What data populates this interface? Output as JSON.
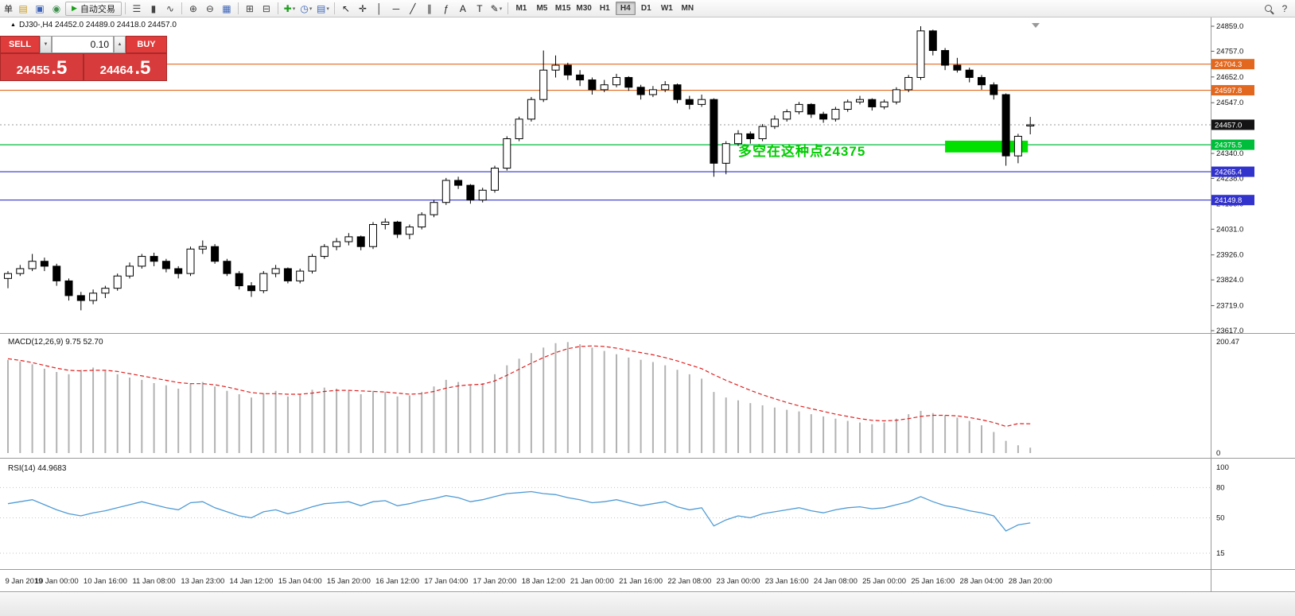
{
  "toolbar": {
    "dropdown_glyph": "▾",
    "help_glyph": "?",
    "timeframes": [
      "M1",
      "M5",
      "M15",
      "M30",
      "H1",
      "H4",
      "D1",
      "W1",
      "MN"
    ],
    "active_timeframe": "H4",
    "groups": [
      {
        "name": "trade-group",
        "items": [
          {
            "kind": "text",
            "name": "new-order-button",
            "glyph": "单"
          },
          {
            "kind": "icon",
            "name": "charts-icon",
            "glyph": "▤",
            "color": "#c79818"
          },
          {
            "kind": "icon",
            "name": "terminal-icon",
            "glyph": "▣",
            "color": "#3a62b8"
          },
          {
            "kind": "icon",
            "name": "navigator-icon",
            "glyph": "◉",
            "color": "#3f8f4f"
          },
          {
            "kind": "button",
            "name": "auto-trading-button",
            "glyph": "▶",
            "color": "#19a019",
            "label": "自动交易"
          }
        ]
      },
      {
        "name": "chart-type-group",
        "items": [
          {
            "kind": "icon",
            "name": "bar-chart-icon",
            "glyph": "☰",
            "color": "#444"
          },
          {
            "kind": "icon",
            "name": "candlestick-chart-icon",
            "glyph": "▮",
            "color": "#444"
          },
          {
            "kind": "icon",
            "name": "line-chart-icon",
            "glyph": "∿",
            "color": "#444"
          }
        ]
      },
      {
        "name": "zoom-group",
        "items": [
          {
            "kind": "icon",
            "name": "zoom-in-icon",
            "glyph": "⊕",
            "color": "#444"
          },
          {
            "kind": "icon",
            "name": "zoom-out-icon",
            "glyph": "⊖",
            "color": "#444"
          },
          {
            "kind": "icon",
            "name": "grid-icon",
            "glyph": "▦",
            "color": "#3a62b8"
          }
        ]
      },
      {
        "name": "window-group",
        "items": [
          {
            "kind": "icon",
            "name": "tile-windows-icon",
            "glyph": "⊞",
            "color": "#444"
          },
          {
            "kind": "icon",
            "name": "cascade-windows-icon",
            "glyph": "⊟",
            "color": "#444"
          }
        ]
      },
      {
        "name": "insert-group",
        "items": [
          {
            "kind": "icon",
            "name": "indicators-add-icon",
            "glyph": "✚",
            "color": "#1f9f1f",
            "dropdown": true
          },
          {
            "kind": "icon",
            "name": "periods-icon",
            "glyph": "◷",
            "color": "#3a62b8",
            "dropdown": true
          },
          {
            "kind": "icon",
            "name": "templates-icon",
            "glyph": "▤",
            "color": "#3a62b8",
            "dropdown": true
          }
        ]
      },
      {
        "name": "objects-group",
        "items": [
          {
            "kind": "icon",
            "name": "cursor-icon",
            "glyph": "↖",
            "color": "#222"
          },
          {
            "kind": "icon",
            "name": "crosshair-icon",
            "glyph": "✛",
            "color": "#222"
          },
          {
            "kind": "icon",
            "name": "vertical-line-icon",
            "glyph": "│",
            "color": "#222"
          },
          {
            "kind": "icon",
            "name": "horizontal-line-icon",
            "glyph": "─",
            "color": "#222"
          },
          {
            "kind": "icon",
            "name": "trendline-icon",
            "glyph": "╱",
            "color": "#222"
          },
          {
            "kind": "icon",
            "name": "equidistant-channel-icon",
            "glyph": "∥",
            "color": "#222"
          },
          {
            "kind": "icon",
            "name": "fibonacci-icon",
            "glyph": "ƒ",
            "color": "#222"
          },
          {
            "kind": "icon",
            "name": "text-icon",
            "glyph": "A",
            "color": "#222"
          },
          {
            "kind": "icon",
            "name": "text-label-icon",
            "glyph": "T",
            "color": "#222"
          },
          {
            "kind": "icon",
            "name": "arrows-icon",
            "glyph": "✎",
            "color": "#222",
            "dropdown": true
          }
        ]
      }
    ]
  },
  "chart": {
    "marker_glyph": "▲",
    "title_text": "DJ30-,H4  24452.0 24489.0 24418.0 24457.0"
  },
  "trade_panel": {
    "sell_label": "SELL",
    "buy_label": "BUY",
    "volume": "0.10",
    "sell_dropdown_glyph": "▼",
    "volume_up_glyph": "▲",
    "sell_price_main": "24455",
    "sell_price_frac": ".5",
    "buy_price_main": "24464",
    "buy_price_frac": ".5"
  },
  "annotations": {
    "note_text": "多空在这种点24375",
    "levels": [
      {
        "label": "24704.3",
        "price": 24704.3,
        "color": "#E2681F"
      },
      {
        "label": "24597.8",
        "price": 24597.8,
        "color": "#E2681F"
      },
      {
        "label": "24375.5",
        "price": 24375.5,
        "color": "#00BE3C"
      },
      {
        "label": "24265.4",
        "price": 24265.4,
        "color": "#3232CC"
      },
      {
        "label": "24149.8",
        "price": 24149.8,
        "color": "#3232CC"
      }
    ],
    "current_price": {
      "label": "24457.0",
      "price": 24457.0,
      "color": "#141414"
    },
    "green_zone": {
      "x_start_index": 77,
      "x_end_index": 84,
      "price_top": 24392,
      "price_bottom": 24344,
      "color": "#00E000"
    }
  },
  "chart_data": {
    "type": "candlestick",
    "symbol": "DJ30-",
    "timeframe": "H4",
    "price_axis_labels": [
      "24859.0",
      "24757.0",
      "24652.0",
      "24547.0",
      "24340.0",
      "24238.0",
      "24135.0",
      "24031.0",
      "23926.0",
      "23824.0",
      "23719.0",
      "23617.0"
    ],
    "price_range": {
      "top_price": 24859.0,
      "bottom_price": 23617.0
    },
    "candles": [
      [
        23830,
        23860,
        23790,
        23850
      ],
      [
        23850,
        23885,
        23840,
        23870
      ],
      [
        23870,
        23930,
        23860,
        23900
      ],
      [
        23900,
        23915,
        23860,
        23880
      ],
      [
        23880,
        23890,
        23800,
        23820
      ],
      [
        23820,
        23830,
        23740,
        23760
      ],
      [
        23760,
        23775,
        23700,
        23740
      ],
      [
        23740,
        23785,
        23725,
        23770
      ],
      [
        23770,
        23800,
        23750,
        23790
      ],
      [
        23790,
        23850,
        23780,
        23840
      ],
      [
        23840,
        23895,
        23830,
        23880
      ],
      [
        23880,
        23930,
        23870,
        23920
      ],
      [
        23920,
        23935,
        23880,
        23900
      ],
      [
        23900,
        23910,
        23855,
        23870
      ],
      [
        23870,
        23880,
        23830,
        23850
      ],
      [
        23850,
        23960,
        23840,
        23950
      ],
      [
        23950,
        23985,
        23930,
        23960
      ],
      [
        23960,
        23970,
        23890,
        23900
      ],
      [
        23900,
        23910,
        23840,
        23850
      ],
      [
        23850,
        23860,
        23785,
        23800
      ],
      [
        23800,
        23815,
        23755,
        23780
      ],
      [
        23780,
        23860,
        23770,
        23850
      ],
      [
        23850,
        23885,
        23835,
        23870
      ],
      [
        23870,
        23875,
        23810,
        23820
      ],
      [
        23820,
        23870,
        23810,
        23860
      ],
      [
        23860,
        23930,
        23850,
        23920
      ],
      [
        23920,
        23970,
        23910,
        23960
      ],
      [
        23960,
        23995,
        23945,
        23980
      ],
      [
        23980,
        24015,
        23965,
        24000
      ],
      [
        24000,
        24005,
        23945,
        23960
      ],
      [
        23960,
        24060,
        23950,
        24050
      ],
      [
        24050,
        24075,
        24030,
        24060
      ],
      [
        24060,
        24065,
        23995,
        24010
      ],
      [
        24010,
        24050,
        23990,
        24040
      ],
      [
        24040,
        24100,
        24030,
        24090
      ],
      [
        24090,
        24150,
        24080,
        24140
      ],
      [
        24140,
        24240,
        24130,
        24230
      ],
      [
        24230,
        24245,
        24195,
        24210
      ],
      [
        24210,
        24215,
        24135,
        24150
      ],
      [
        24150,
        24200,
        24140,
        24190
      ],
      [
        24190,
        24290,
        24180,
        24280
      ],
      [
        24280,
        24410,
        24270,
        24400
      ],
      [
        24400,
        24490,
        24390,
        24480
      ],
      [
        24480,
        24570,
        24470,
        24560
      ],
      [
        24560,
        24760,
        24550,
        24680
      ],
      [
        24680,
        24740,
        24650,
        24700
      ],
      [
        24700,
        24710,
        24640,
        24660
      ],
      [
        24660,
        24680,
        24615,
        24640
      ],
      [
        24640,
        24650,
        24580,
        24600
      ],
      [
        24600,
        24640,
        24590,
        24620
      ],
      [
        24620,
        24665,
        24610,
        24650
      ],
      [
        24650,
        24655,
        24595,
        24610
      ],
      [
        24610,
        24620,
        24560,
        24580
      ],
      [
        24580,
        24615,
        24570,
        24600
      ],
      [
        24600,
        24635,
        24590,
        24620
      ],
      [
        24620,
        24625,
        24545,
        24560
      ],
      [
        24560,
        24575,
        24520,
        24540
      ],
      [
        24540,
        24580,
        24530,
        24560
      ],
      [
        24560,
        24565,
        24245,
        24300
      ],
      [
        24300,
        24390,
        24255,
        24380
      ],
      [
        24380,
        24435,
        24370,
        24420
      ],
      [
        24420,
        24430,
        24380,
        24400
      ],
      [
        24400,
        24460,
        24390,
        24450
      ],
      [
        24450,
        24495,
        24440,
        24480
      ],
      [
        24480,
        24520,
        24470,
        24510
      ],
      [
        24510,
        24550,
        24500,
        24540
      ],
      [
        24540,
        24545,
        24485,
        24500
      ],
      [
        24500,
        24510,
        24465,
        24480
      ],
      [
        24480,
        24530,
        24470,
        24520
      ],
      [
        24520,
        24560,
        24510,
        24550
      ],
      [
        24550,
        24575,
        24540,
        24560
      ],
      [
        24560,
        24565,
        24515,
        24530
      ],
      [
        24530,
        24560,
        24520,
        24550
      ],
      [
        24550,
        24610,
        24540,
        24600
      ],
      [
        24600,
        24660,
        24590,
        24650
      ],
      [
        24650,
        24859,
        24640,
        24840
      ],
      [
        24840,
        24845,
        24740,
        24760
      ],
      [
        24760,
        24770,
        24680,
        24700
      ],
      [
        24700,
        24730,
        24670,
        24680
      ],
      [
        24680,
        24690,
        24630,
        24650
      ],
      [
        24650,
        24660,
        24600,
        24620
      ],
      [
        24620,
        24630,
        24560,
        24580
      ],
      [
        24580,
        24585,
        24290,
        24330
      ],
      [
        24330,
        24420,
        24300,
        24410
      ],
      [
        24452,
        24489,
        24418,
        24457
      ]
    ],
    "time_labels": [
      "9 Jan 2019",
      "10 Jan 00:00",
      "10 Jan 16:00",
      "11 Jan 08:00",
      "13 Jan 23:00",
      "14 Jan 12:00",
      "15 Jan 04:00",
      "15 Jan 20:00",
      "16 Jan 12:00",
      "17 Jan 04:00",
      "17 Jan 20:00",
      "18 Jan 12:00",
      "21 Jan 00:00",
      "21 Jan 16:00",
      "22 Jan 08:00",
      "23 Jan 00:00",
      "23 Jan 16:00",
      "24 Jan 08:00",
      "25 Jan 00:00",
      "25 Jan 16:00",
      "28 Jan 04:00",
      "28 Jan 20:00"
    ],
    "macd": {
      "label": "MACD(12,26,9) 9.75 52.70",
      "axis_labels": [
        "200.47",
        "0"
      ],
      "axis_max": 200.47,
      "hist": [
        168,
        165,
        160,
        152,
        146,
        142,
        150,
        154,
        148,
        142,
        136,
        132,
        126,
        122,
        116,
        126,
        128,
        120,
        112,
        106,
        100,
        108,
        112,
        102,
        106,
        114,
        118,
        116,
        112,
        106,
        112,
        110,
        102,
        104,
        110,
        120,
        132,
        128,
        122,
        126,
        142,
        158,
        170,
        180,
        190,
        198,
        200,
        196,
        190,
        184,
        178,
        172,
        168,
        164,
        158,
        150,
        142,
        134,
        110,
        100,
        95,
        90,
        86,
        82,
        78,
        75,
        70,
        66,
        62,
        58,
        55,
        52,
        55,
        62,
        70,
        76,
        72,
        68,
        64,
        58,
        50,
        38,
        22,
        14,
        9.75
      ],
      "signal": [
        170,
        167,
        163,
        158,
        153,
        149,
        148,
        149,
        149,
        147,
        143,
        139,
        135,
        131,
        127,
        125,
        125,
        123,
        119,
        114,
        109,
        107,
        107,
        106,
        106,
        108,
        111,
        113,
        113,
        112,
        111,
        110,
        108,
        106,
        107,
        111,
        117,
        121,
        123,
        124,
        130,
        140,
        151,
        162,
        172,
        181,
        188,
        192,
        193,
        192,
        189,
        185,
        181,
        177,
        172,
        166,
        159,
        152,
        141,
        131,
        122,
        113,
        105,
        98,
        91,
        85,
        80,
        75,
        70,
        66,
        62,
        59,
        58,
        59,
        62,
        66,
        68,
        68,
        67,
        64,
        60,
        55,
        48,
        53,
        52.7
      ]
    },
    "rsi": {
      "label": "RSI(14) 44.9683",
      "axis_labels": [
        "100",
        "80",
        "50",
        "15"
      ],
      "levels": [
        80,
        50,
        15
      ],
      "values": [
        64,
        66,
        68,
        63,
        58,
        54,
        52,
        55,
        57,
        60,
        63,
        66,
        63,
        60,
        58,
        65,
        66,
        60,
        56,
        52,
        50,
        56,
        58,
        54,
        57,
        61,
        64,
        65,
        66,
        62,
        66,
        67,
        62,
        64,
        67,
        69,
        72,
        70,
        66,
        68,
        71,
        74,
        75,
        76,
        74,
        73,
        70,
        68,
        65,
        66,
        68,
        65,
        62,
        64,
        66,
        61,
        58,
        60,
        42,
        48,
        52,
        50,
        54,
        56,
        58,
        60,
        57,
        55,
        58,
        60,
        61,
        59,
        60,
        63,
        66,
        71,
        66,
        62,
        60,
        57,
        55,
        52,
        37,
        43,
        44.97
      ]
    }
  }
}
